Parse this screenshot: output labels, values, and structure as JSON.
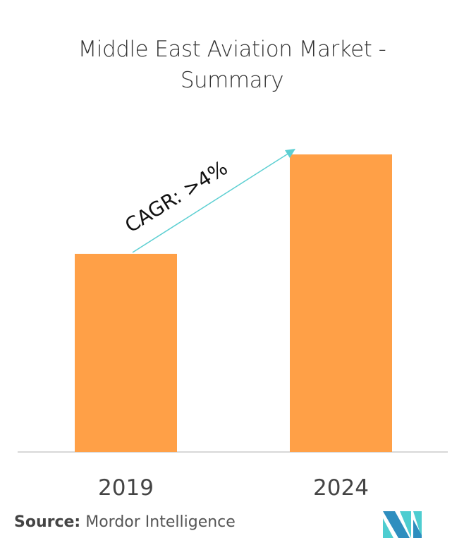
{
  "chart_data": {
    "type": "bar",
    "title": "Middle East Aviation Market - Summary",
    "categories": [
      "2019",
      "2024"
    ],
    "values": [
      66.6,
      100
    ],
    "value_note_hidden": null,
    "annotation": "CAGR: >4%",
    "xlabel": "",
    "ylabel": "",
    "grid": false,
    "colors": {
      "bar": "#FFA047",
      "arrow": "#5CCFD2",
      "axis": "#CCCCCC"
    }
  },
  "title_line1": "Middle East Aviation Market -",
  "title_line2": "Summary",
  "source": {
    "label": "Source:",
    "text": "Mordor Intelligence"
  },
  "logo": {
    "colors": [
      "#2E8EBF",
      "#4ECDD0"
    ]
  }
}
